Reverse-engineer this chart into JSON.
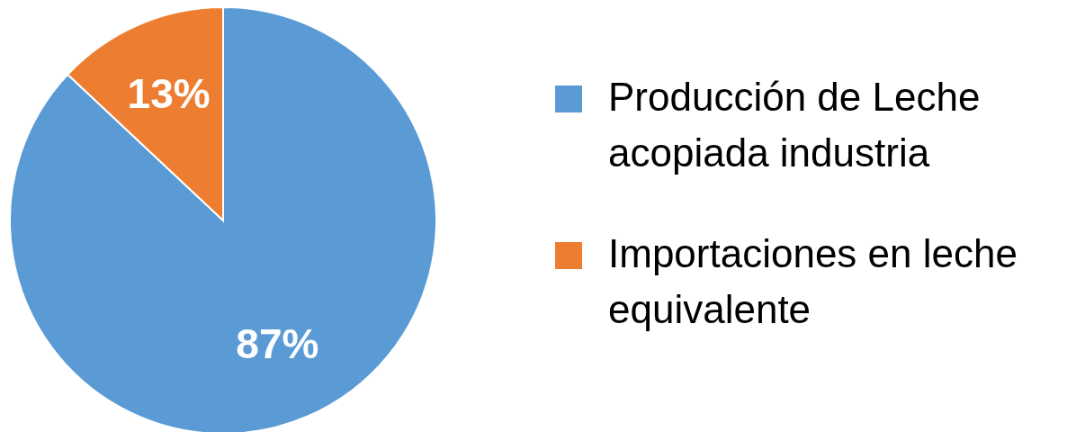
{
  "chart_data": {
    "type": "pie",
    "categories": [
      "Producción de Leche acopiada industria",
      "Importaciones en leche equivalente"
    ],
    "values": [
      87,
      13
    ],
    "colors": [
      "#5b9bd5",
      "#ed7d31"
    ],
    "value_labels": [
      "87%",
      "13%"
    ],
    "legend": "right"
  }
}
